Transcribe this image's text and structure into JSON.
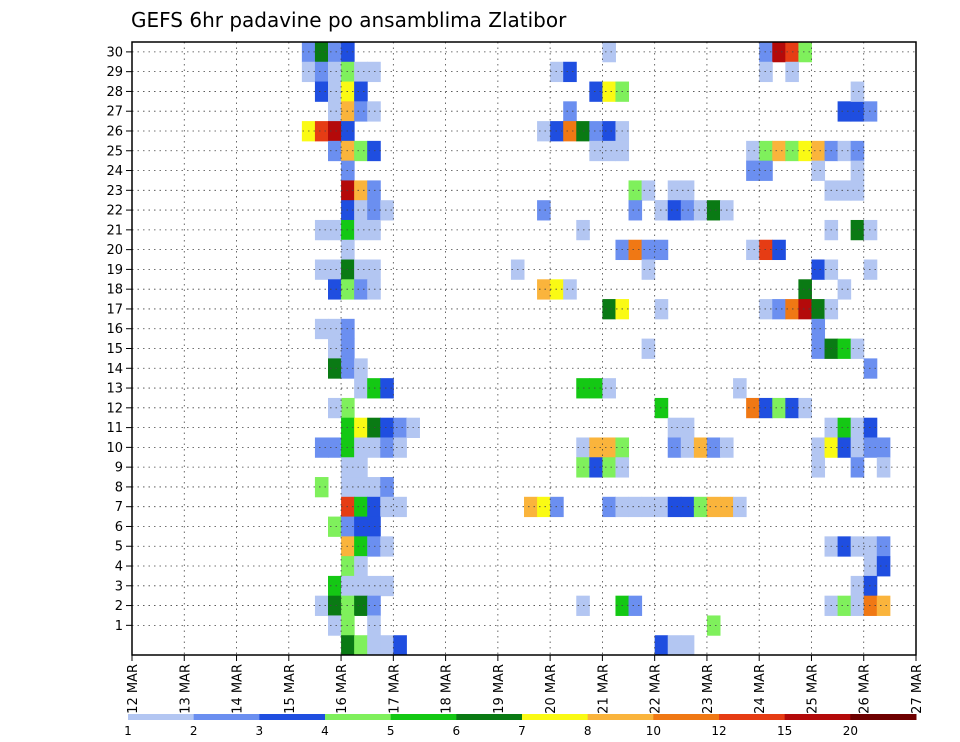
{
  "chart_data": {
    "type": "heatmap",
    "title": "GEFS 6hr padavine po ansamblima Zlatibor",
    "xlabel": "",
    "ylabel": "",
    "x_tick_labels": [
      "12 MAR",
      "13 MAR",
      "14 MAR",
      "15 MAR",
      "16 MAR",
      "17 MAR",
      "18 MAR",
      "19 MAR",
      "20 MAR",
      "21 MAR",
      "22 MAR",
      "23 MAR",
      "24 MAR",
      "25 MAR",
      "26 MAR",
      "27 MAR"
    ],
    "y_tick_labels": [
      "1",
      "2",
      "3",
      "4",
      "5",
      "6",
      "7",
      "8",
      "9",
      "10",
      "11",
      "12",
      "13",
      "14",
      "15",
      "16",
      "17",
      "18",
      "19",
      "20",
      "21",
      "22",
      "23",
      "24",
      "25",
      "26",
      "27",
      "28",
      "29",
      "30"
    ],
    "grid": true,
    "legend_placement": "bottom",
    "levels": [
      {
        "label": "1",
        "color": "#b3c6f2"
      },
      {
        "label": "2",
        "color": "#6b8ff0"
      },
      {
        "label": "3",
        "color": "#1f4ee0"
      },
      {
        "label": "4",
        "color": "#7ff05c"
      },
      {
        "label": "5",
        "color": "#14c814"
      },
      {
        "label": "6",
        "color": "#0a7a14"
      },
      {
        "label": "7",
        "color": "#fafa14"
      },
      {
        "label": "8",
        "color": "#fab43c"
      },
      {
        "label": "10",
        "color": "#f07814"
      },
      {
        "label": "12",
        "color": "#e63c14"
      },
      {
        "label": "15",
        "color": "#b40a0a"
      },
      {
        "label": "20",
        "color": "#6e0000"
      }
    ],
    "cells_note": "each cell: [time_step_6h_from_12MAR_00, member, level_index 0..11]",
    "cells": [
      [
        13,
        30,
        1
      ],
      [
        14,
        30,
        5
      ],
      [
        15,
        30,
        1
      ],
      [
        16,
        30,
        2
      ],
      [
        13,
        29,
        0
      ],
      [
        14,
        29,
        1
      ],
      [
        15,
        29,
        0
      ],
      [
        16,
        29,
        3
      ],
      [
        17,
        29,
        0
      ],
      [
        18,
        29,
        0
      ],
      [
        14,
        28,
        2
      ],
      [
        15,
        28,
        0
      ],
      [
        16,
        28,
        6
      ],
      [
        17,
        28,
        2
      ],
      [
        15,
        27,
        0
      ],
      [
        16,
        27,
        7
      ],
      [
        17,
        27,
        1
      ],
      [
        18,
        27,
        0
      ],
      [
        13,
        26,
        6
      ],
      [
        14,
        26,
        9
      ],
      [
        15,
        26,
        10
      ],
      [
        16,
        26,
        2
      ],
      [
        15,
        25,
        1
      ],
      [
        16,
        25,
        7
      ],
      [
        17,
        25,
        3
      ],
      [
        18,
        25,
        2
      ],
      [
        16,
        24,
        1
      ],
      [
        16,
        23,
        10
      ],
      [
        17,
        23,
        7
      ],
      [
        18,
        23,
        1
      ],
      [
        16,
        22,
        2
      ],
      [
        17,
        22,
        0
      ],
      [
        18,
        22,
        1
      ],
      [
        19,
        22,
        0
      ],
      [
        14,
        21,
        0
      ],
      [
        15,
        21,
        0
      ],
      [
        16,
        21,
        4
      ],
      [
        17,
        21,
        0
      ],
      [
        18,
        21,
        0
      ],
      [
        16,
        20,
        0
      ],
      [
        14,
        19,
        0
      ],
      [
        15,
        19,
        0
      ],
      [
        16,
        19,
        5
      ],
      [
        17,
        19,
        0
      ],
      [
        18,
        19,
        0
      ],
      [
        15,
        18,
        2
      ],
      [
        16,
        18,
        3
      ],
      [
        17,
        18,
        1
      ],
      [
        18,
        18,
        0
      ],
      [
        14,
        16,
        0
      ],
      [
        15,
        16,
        0
      ],
      [
        16,
        16,
        1
      ],
      [
        15,
        15,
        0
      ],
      [
        16,
        15,
        1
      ],
      [
        15,
        14,
        5
      ],
      [
        16,
        14,
        1
      ],
      [
        17,
        14,
        0
      ],
      [
        17,
        13,
        0
      ],
      [
        18,
        13,
        4
      ],
      [
        19,
        13,
        2
      ],
      [
        16,
        12,
        3
      ],
      [
        15,
        12,
        0
      ],
      [
        16,
        11,
        4
      ],
      [
        17,
        11,
        6
      ],
      [
        18,
        11,
        5
      ],
      [
        19,
        11,
        2
      ],
      [
        20,
        11,
        1
      ],
      [
        21,
        11,
        0
      ],
      [
        14,
        10,
        1
      ],
      [
        15,
        10,
        1
      ],
      [
        16,
        10,
        4
      ],
      [
        17,
        10,
        0
      ],
      [
        18,
        10,
        0
      ],
      [
        19,
        10,
        1
      ],
      [
        20,
        10,
        0
      ],
      [
        16,
        9,
        0
      ],
      [
        17,
        9,
        0
      ],
      [
        16,
        8,
        0
      ],
      [
        17,
        8,
        0
      ],
      [
        18,
        8,
        0
      ],
      [
        19,
        8,
        1
      ],
      [
        14,
        8,
        3
      ],
      [
        16,
        7,
        9
      ],
      [
        17,
        7,
        4
      ],
      [
        18,
        7,
        2
      ],
      [
        19,
        7,
        0
      ],
      [
        20,
        7,
        0
      ],
      [
        15,
        6,
        3
      ],
      [
        16,
        6,
        1
      ],
      [
        17,
        6,
        2
      ],
      [
        18,
        6,
        2
      ],
      [
        16,
        5,
        7
      ],
      [
        17,
        5,
        4
      ],
      [
        18,
        5,
        1
      ],
      [
        19,
        5,
        0
      ],
      [
        16,
        4,
        3
      ],
      [
        17,
        4,
        0
      ],
      [
        15,
        3,
        4
      ],
      [
        16,
        3,
        0
      ],
      [
        17,
        3,
        0
      ],
      [
        18,
        3,
        0
      ],
      [
        19,
        3,
        0
      ],
      [
        14,
        2,
        0
      ],
      [
        15,
        2,
        5
      ],
      [
        16,
        2,
        3
      ],
      [
        17,
        2,
        5
      ],
      [
        18,
        2,
        1
      ],
      [
        15,
        1,
        0
      ],
      [
        16,
        1,
        3
      ],
      [
        18,
        1,
        0
      ],
      [
        16,
        0,
        5
      ],
      [
        17,
        0,
        3
      ],
      [
        18,
        0,
        0
      ],
      [
        19,
        0,
        0
      ],
      [
        20,
        0,
        2
      ],
      [
        32,
        29,
        0
      ],
      [
        33,
        29,
        2
      ],
      [
        35,
        28,
        2
      ],
      [
        36,
        28,
        6
      ],
      [
        37,
        28,
        3
      ],
      [
        33,
        27,
        1
      ],
      [
        31,
        26,
        0
      ],
      [
        32,
        26,
        2
      ],
      [
        33,
        26,
        8
      ],
      [
        34,
        26,
        5
      ],
      [
        35,
        26,
        1
      ],
      [
        36,
        26,
        2
      ],
      [
        37,
        26,
        0
      ],
      [
        35,
        25,
        0
      ],
      [
        36,
        25,
        0
      ],
      [
        37,
        25,
        0
      ],
      [
        38,
        23,
        3
      ],
      [
        39,
        23,
        0
      ],
      [
        40,
        22,
        0
      ],
      [
        41,
        23,
        0
      ],
      [
        42,
        23,
        0
      ],
      [
        31,
        22,
        1
      ],
      [
        38,
        22,
        1
      ],
      [
        40,
        22,
        0
      ],
      [
        41,
        22,
        2
      ],
      [
        42,
        22,
        1
      ],
      [
        43,
        22,
        0
      ],
      [
        44,
        22,
        5
      ],
      [
        45,
        22,
        0
      ],
      [
        34,
        21,
        0
      ],
      [
        37,
        20,
        1
      ],
      [
        38,
        20,
        8
      ],
      [
        39,
        20,
        1
      ],
      [
        40,
        20,
        1
      ],
      [
        29,
        19,
        0
      ],
      [
        39,
        19,
        0
      ],
      [
        31,
        18,
        7
      ],
      [
        32,
        18,
        6
      ],
      [
        33,
        18,
        0
      ],
      [
        36,
        17,
        5
      ],
      [
        37,
        17,
        6
      ],
      [
        40,
        17,
        0
      ],
      [
        39,
        15,
        0
      ],
      [
        34,
        13,
        4
      ],
      [
        35,
        13,
        4
      ],
      [
        36,
        13,
        0
      ],
      [
        40,
        12,
        4
      ],
      [
        41,
        11,
        0
      ],
      [
        42,
        11,
        0
      ],
      [
        34,
        10,
        0
      ],
      [
        35,
        10,
        7
      ],
      [
        36,
        10,
        7
      ],
      [
        37,
        10,
        3
      ],
      [
        41,
        10,
        1
      ],
      [
        42,
        10,
        0
      ],
      [
        43,
        10,
        7
      ],
      [
        44,
        10,
        1
      ],
      [
        45,
        10,
        0
      ],
      [
        34,
        9,
        3
      ],
      [
        35,
        9,
        2
      ],
      [
        36,
        9,
        3
      ],
      [
        37,
        9,
        0
      ],
      [
        30,
        7,
        7
      ],
      [
        31,
        7,
        6
      ],
      [
        32,
        7,
        1
      ],
      [
        36,
        7,
        1
      ],
      [
        37,
        7,
        0
      ],
      [
        38,
        7,
        0
      ],
      [
        39,
        7,
        0
      ],
      [
        40,
        7,
        0
      ],
      [
        41,
        7,
        2
      ],
      [
        42,
        7,
        2
      ],
      [
        43,
        7,
        3
      ],
      [
        44,
        7,
        7
      ],
      [
        45,
        7,
        7
      ],
      [
        46,
        7,
        0
      ],
      [
        34,
        2,
        0
      ],
      [
        37,
        2,
        4
      ],
      [
        38,
        2,
        1
      ],
      [
        44,
        1,
        3
      ],
      [
        40,
        0,
        2
      ],
      [
        41,
        0,
        0
      ],
      [
        42,
        0,
        0
      ],
      [
        36,
        30,
        0
      ],
      [
        48,
        30,
        1
      ],
      [
        49,
        30,
        10
      ],
      [
        50,
        30,
        9
      ],
      [
        51,
        30,
        3
      ],
      [
        48,
        29,
        0
      ],
      [
        50,
        29,
        0
      ],
      [
        54,
        27,
        2
      ],
      [
        55,
        27,
        2
      ],
      [
        56,
        27,
        1
      ],
      [
        55,
        28,
        0
      ],
      [
        47,
        25,
        0
      ],
      [
        48,
        25,
        3
      ],
      [
        49,
        25,
        7
      ],
      [
        50,
        25,
        3
      ],
      [
        51,
        25,
        6
      ],
      [
        52,
        25,
        7
      ],
      [
        53,
        25,
        1
      ],
      [
        54,
        25,
        0
      ],
      [
        55,
        25,
        1
      ],
      [
        47,
        24,
        1
      ],
      [
        48,
        24,
        1
      ],
      [
        52,
        24,
        0
      ],
      [
        55,
        24,
        0
      ],
      [
        53,
        23,
        0
      ],
      [
        54,
        23,
        0
      ],
      [
        55,
        23,
        0
      ],
      [
        53,
        21,
        0
      ],
      [
        55,
        21,
        5
      ],
      [
        56,
        21,
        0
      ],
      [
        47,
        20,
        0
      ],
      [
        48,
        20,
        9
      ],
      [
        49,
        20,
        2
      ],
      [
        52,
        19,
        2
      ],
      [
        53,
        19,
        0
      ],
      [
        56,
        19,
        0
      ],
      [
        51,
        18,
        5
      ],
      [
        54,
        18,
        0
      ],
      [
        48,
        17,
        0
      ],
      [
        49,
        17,
        1
      ],
      [
        50,
        17,
        8
      ],
      [
        51,
        17,
        10
      ],
      [
        52,
        17,
        5
      ],
      [
        53,
        17,
        0
      ],
      [
        52,
        16,
        1
      ],
      [
        52,
        15,
        1
      ],
      [
        53,
        15,
        5
      ],
      [
        54,
        15,
        4
      ],
      [
        55,
        15,
        0
      ],
      [
        56,
        14,
        1
      ],
      [
        46,
        13,
        0
      ],
      [
        47,
        12,
        8
      ],
      [
        48,
        12,
        2
      ],
      [
        49,
        12,
        3
      ],
      [
        50,
        12,
        2
      ],
      [
        51,
        12,
        0
      ],
      [
        53,
        11,
        0
      ],
      [
        54,
        11,
        4
      ],
      [
        55,
        11,
        0
      ],
      [
        56,
        11,
        2
      ],
      [
        52,
        10,
        0
      ],
      [
        53,
        10,
        6
      ],
      [
        54,
        10,
        2
      ],
      [
        55,
        10,
        0
      ],
      [
        56,
        10,
        1
      ],
      [
        57,
        10,
        1
      ],
      [
        52,
        9,
        0
      ],
      [
        55,
        9,
        1
      ],
      [
        57,
        9,
        0
      ],
      [
        53,
        5,
        0
      ],
      [
        54,
        5,
        2
      ],
      [
        55,
        5,
        0
      ],
      [
        56,
        5,
        0
      ],
      [
        57,
        5,
        1
      ],
      [
        56,
        4,
        0
      ],
      [
        57,
        4,
        2
      ],
      [
        55,
        3,
        0
      ],
      [
        56,
        3,
        2
      ],
      [
        53,
        2,
        0
      ],
      [
        54,
        2,
        3
      ],
      [
        55,
        2,
        0
      ],
      [
        56,
        2,
        8
      ],
      [
        57,
        2,
        7
      ]
    ]
  }
}
